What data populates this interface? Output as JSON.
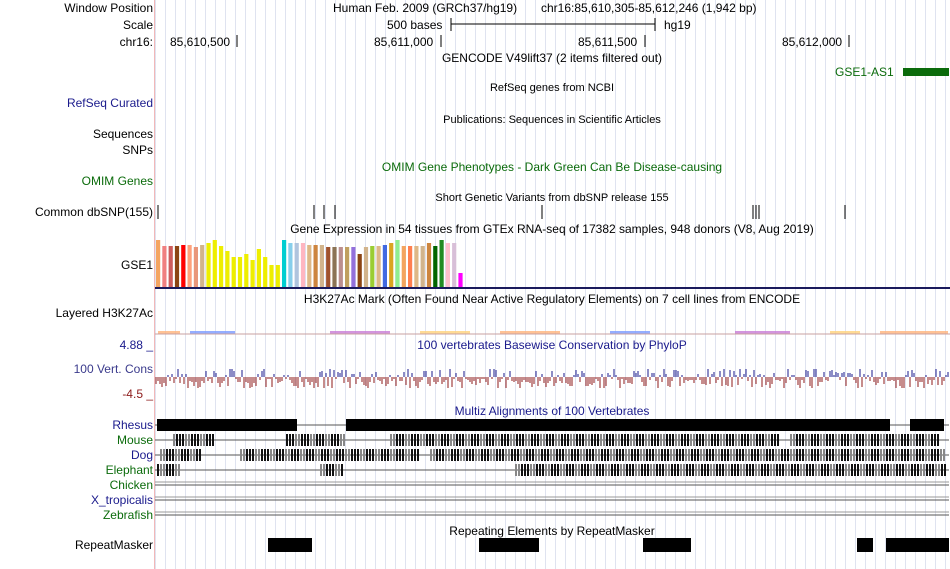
{
  "header": {
    "window_position_label": "Window Position",
    "assembly": "Human Feb. 2009 (GRCh37/hg19)",
    "position": "chr16:85,610,305-85,612,246 (1,942 bp)",
    "scale_label": "Scale",
    "scale_size": "500 bases",
    "scale_db": "hg19",
    "chrom_label": "chr16:",
    "ruler_ticks": [
      "85,610,500",
      "85,611,000",
      "85,611,500",
      "85,612,000"
    ]
  },
  "tracks": {
    "gencode": {
      "title": "GENCODE V49lift37 (2 items filtered out)",
      "gene": "GSE1-AS1",
      "color": "#0b6b0b"
    },
    "refseq": {
      "label": "RefSeq Curated",
      "title": "RefSeq genes from NCBI"
    },
    "publications": {
      "label": "Sequences",
      "title": "Publications: Sequences in Scientific Articles"
    },
    "snps_label": "SNPs",
    "omim": {
      "label": "OMIM Genes",
      "title": "OMIM Gene Phenotypes - Dark Green Can Be Disease-causing"
    },
    "dbsnp": {
      "label": "Common dbSNP(155)",
      "title": "Short Genetic Variants from dbSNP release 155",
      "positions_bp": [
        85610313,
        85610694,
        85610718,
        85610745,
        85611250,
        85611765,
        85611772,
        85611780,
        85611989
      ]
    },
    "gtex": {
      "label": "GSE1",
      "title": "Gene Expression in 54 tissues from GTEx RNA-seq of 17382 samples, 948 donors (V8, Aug 2019)",
      "tissues": [
        {
          "color": "#f4a460",
          "value": 1.0
        },
        {
          "color": "#f08080",
          "value": 0.87
        },
        {
          "color": "#cd5c5c",
          "value": 0.87
        },
        {
          "color": "#8b4513",
          "value": 0.87
        },
        {
          "color": "#ff0000",
          "value": 0.9
        },
        {
          "color": "#ffa07a",
          "value": 0.9
        },
        {
          "color": "#e9967a",
          "value": 0.85
        },
        {
          "color": "#d2b48c",
          "value": 0.9
        },
        {
          "color": "#eeee00",
          "value": 0.93
        },
        {
          "color": "#eeee00",
          "value": 1.0
        },
        {
          "color": "#eeee00",
          "value": 0.87
        },
        {
          "color": "#eeee00",
          "value": 0.77
        },
        {
          "color": "#eeee00",
          "value": 0.63
        },
        {
          "color": "#eeee00",
          "value": 0.63
        },
        {
          "color": "#eeee00",
          "value": 0.7
        },
        {
          "color": "#eeee00",
          "value": 0.57
        },
        {
          "color": "#eeee00",
          "value": 0.8
        },
        {
          "color": "#eeee00",
          "value": 0.63
        },
        {
          "color": "#eeee00",
          "value": 0.47
        },
        {
          "color": "#eeee00",
          "value": 0.47
        },
        {
          "color": "#00ced1",
          "value": 1.0
        },
        {
          "color": "#87ceeb",
          "value": 0.93
        },
        {
          "color": "#b0c4de",
          "value": 0.93
        },
        {
          "color": "#ffb6c1",
          "value": 0.93
        },
        {
          "color": "#deb887",
          "value": 0.9
        },
        {
          "color": "#cd853f",
          "value": 0.9
        },
        {
          "color": "#d2b48c",
          "value": 0.9
        },
        {
          "color": "#a0522d",
          "value": 0.85
        },
        {
          "color": "#8b7355",
          "value": 0.85
        },
        {
          "color": "#bc8f8f",
          "value": 0.85
        },
        {
          "color": "#c0a060",
          "value": 0.85
        },
        {
          "color": "#9370db",
          "value": 0.85
        },
        {
          "color": "#8b4513",
          "value": 0.7
        },
        {
          "color": "#d2b48c",
          "value": 0.85
        },
        {
          "color": "#9acd32",
          "value": 0.87
        },
        {
          "color": "#deb887",
          "value": 0.87
        },
        {
          "color": "#4169e1",
          "value": 0.9
        },
        {
          "color": "#daa520",
          "value": 0.93
        },
        {
          "color": "#90ee90",
          "value": 1.0
        },
        {
          "color": "#f4a460",
          "value": 0.87
        },
        {
          "color": "#ff7f50",
          "value": 0.87
        },
        {
          "color": "#deb887",
          "value": 0.87
        },
        {
          "color": "#d2b48c",
          "value": 0.87
        },
        {
          "color": "#cd853f",
          "value": 0.93
        },
        {
          "color": "#006400",
          "value": 0.87
        },
        {
          "color": "#228b22",
          "value": 1.0
        },
        {
          "color": "#ffc0cb",
          "value": 0.93
        },
        {
          "color": "#d8bfd8",
          "value": 0.93
        },
        {
          "color": "#ff00ff",
          "value": 0.3
        }
      ]
    },
    "h3k27ac": {
      "label": "Layered H3K27Ac",
      "title": "H3K27Ac Mark (Often Found Near Active Regulatory Elements) on 7 cell lines from ENCODE"
    },
    "conservation": {
      "label": "100 Vert. Cons",
      "title": "100 vertebrates Basewise Conservation by PhyloP",
      "max_label": "4.88 _",
      "min_label": "-4.5 _",
      "range": [
        -4.5,
        4.88
      ]
    },
    "multiz": {
      "title": "Multiz Alignments of 100 Vertebrates",
      "species": [
        {
          "name": "Rhesus",
          "color": "#1a1a8c"
        },
        {
          "name": "Mouse",
          "color": "#0b6b0b"
        },
        {
          "name": "Dog",
          "color": "#1a1a8c"
        },
        {
          "name": "Elephant",
          "color": "#0b6b0b"
        },
        {
          "name": "Chicken",
          "color": "#0b6b0b"
        },
        {
          "name": "X_tropicalis",
          "color": "#1a1a8c"
        },
        {
          "name": "Zebrafish",
          "color": "#0b6b0b"
        }
      ]
    },
    "repeatmasker": {
      "label": "RepeatMasker",
      "title": "Repeating Elements by RepeatMasker"
    }
  }
}
